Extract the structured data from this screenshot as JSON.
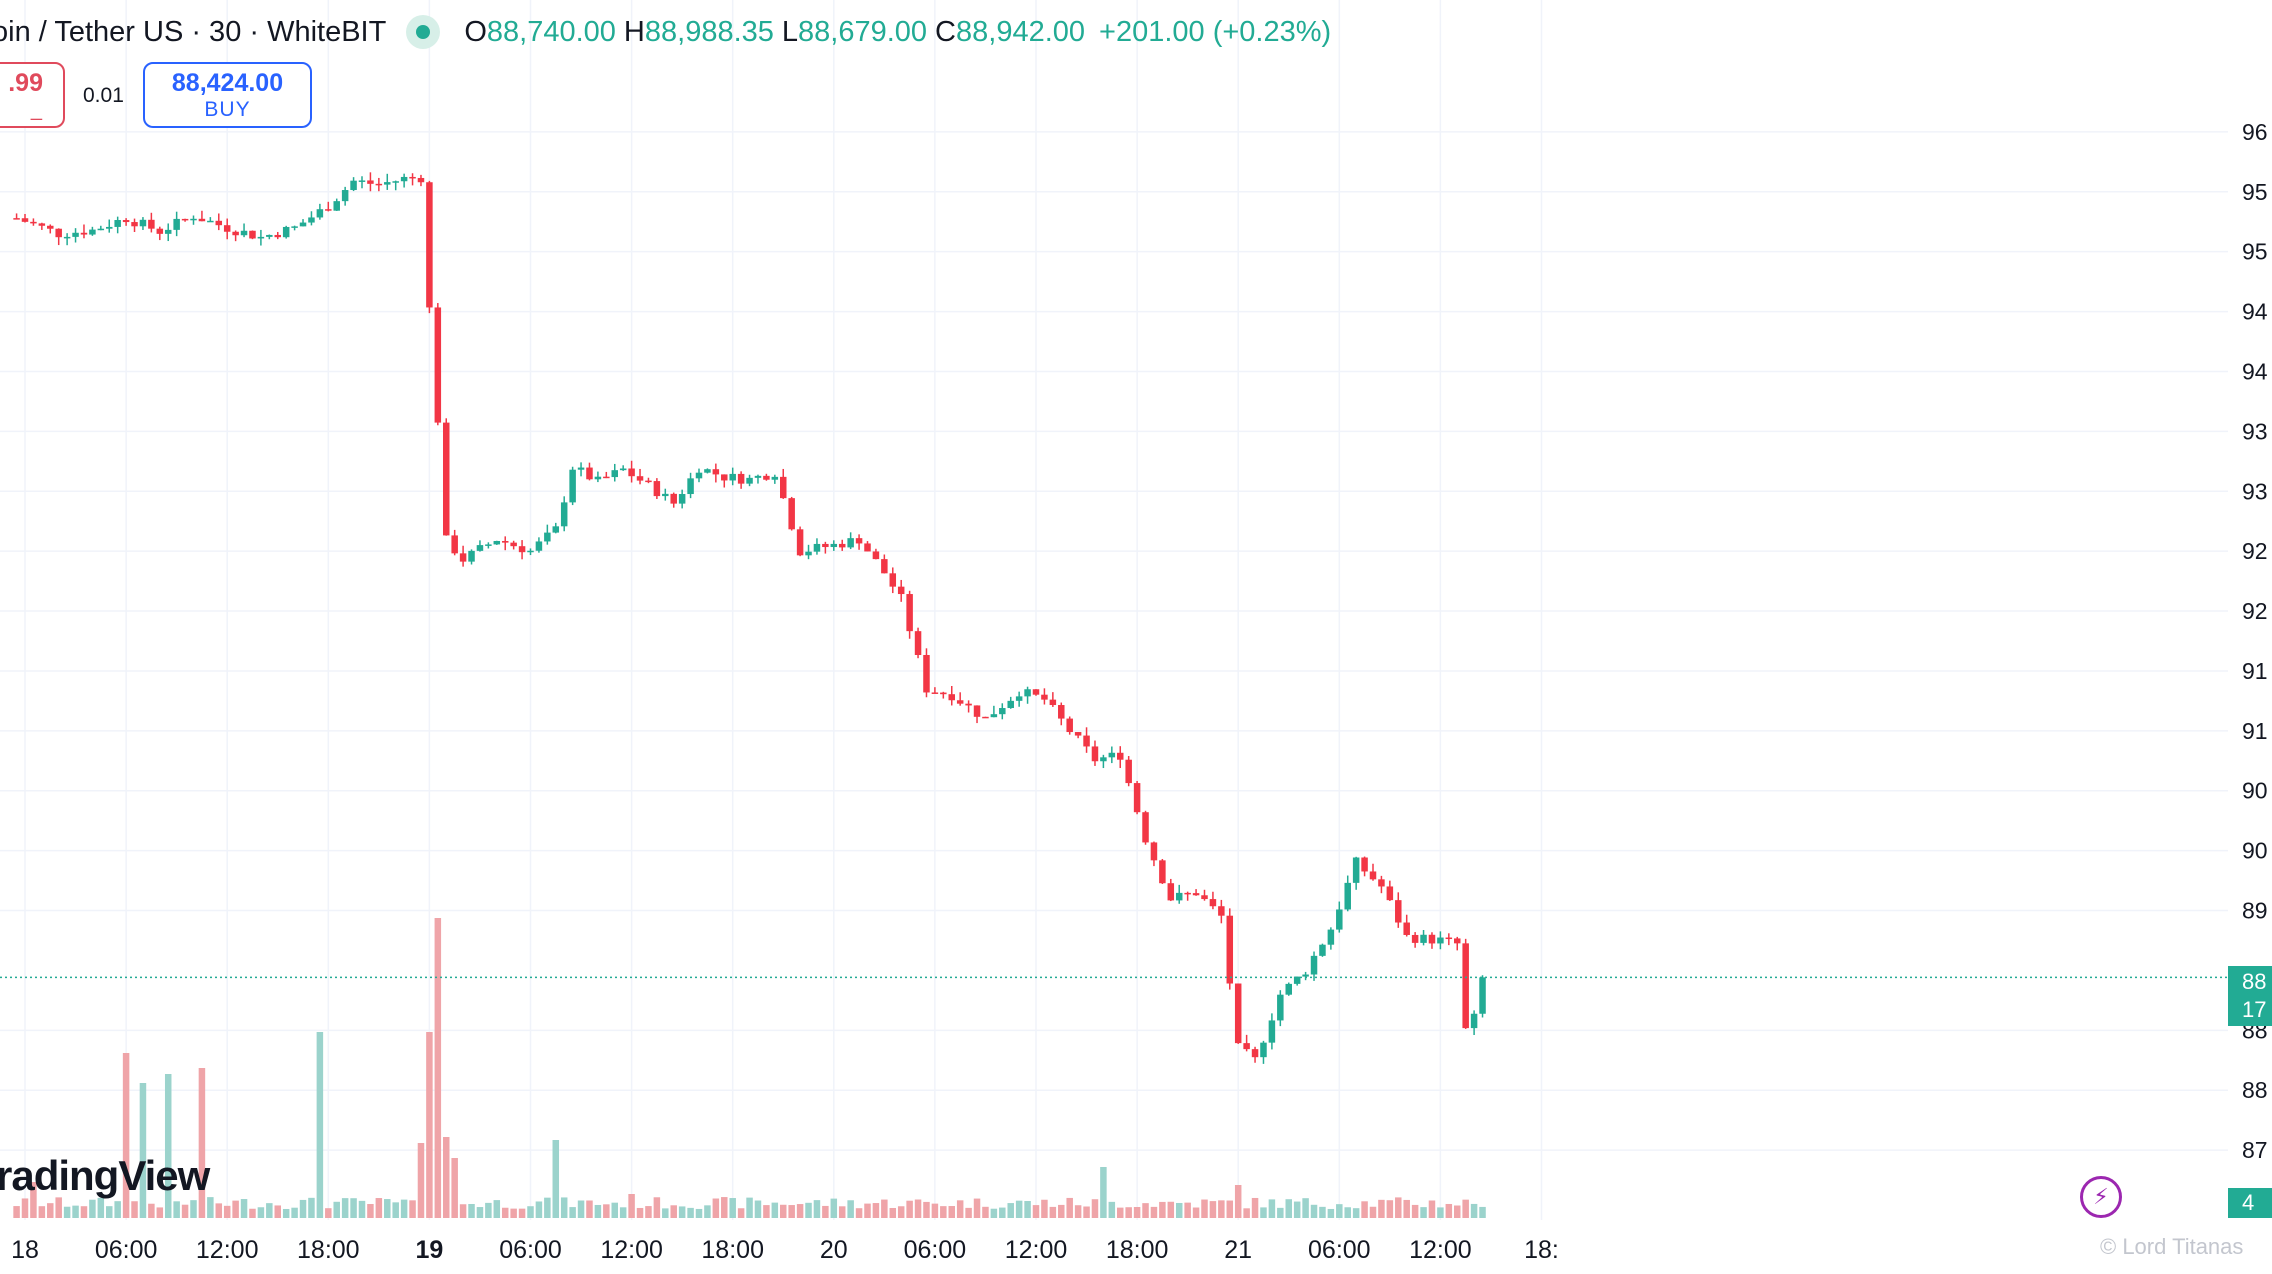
{
  "legend": {
    "symbol": "oin / Tether US · 30 · WhiteBIT",
    "open_key": "O",
    "open": "88,740.00",
    "high_key": "H",
    "high": "88,988.35",
    "low_key": "L",
    "low": "88,679.00",
    "close_key": "C",
    "close": "88,942.00",
    "change": "+201.00 (+0.23%)"
  },
  "trade": {
    "sell_price": ".99",
    "sell_label": "_",
    "spread": "0.01",
    "buy_price": "88,424.00",
    "buy_label": "BUY"
  },
  "watermark": "radingView",
  "footer_credit": "© Lord Titanas",
  "last_price_tag": {
    "line1": "88",
    "line2": "17"
  },
  "volume_tag": "4",
  "colors": {
    "up": "#22ab94",
    "down": "#f23645",
    "up_volume": "#9bd3cc",
    "down_volume": "#efa4a8",
    "grid": "#f0f3fa",
    "axis_text": "#131722"
  },
  "chart_data": {
    "type": "candlestick",
    "symbol": "Bitcoin / Tether US",
    "interval": "30",
    "exchange": "WhiteBIT",
    "y_axis_labels": [
      "96",
      "95",
      "95",
      "94",
      "94",
      "93",
      "93",
      "92",
      "92",
      "91",
      "91",
      "90",
      "90",
      "89",
      "88",
      "88",
      "87"
    ],
    "y_axis_label_values": [
      96000,
      95500,
      95000,
      94500,
      94000,
      93500,
      93000,
      92500,
      92000,
      91500,
      91000,
      90500,
      90000,
      89500,
      88500,
      88000,
      87500
    ],
    "ylim": [
      87000,
      96600
    ],
    "x_axis_labels": [
      {
        "label": "18",
        "hour": 0,
        "bold": false
      },
      {
        "label": "06:00",
        "hour": 6,
        "bold": false
      },
      {
        "label": "12:00",
        "hour": 12,
        "bold": false
      },
      {
        "label": "18:00",
        "hour": 18,
        "bold": false
      },
      {
        "label": "19",
        "hour": 24,
        "bold": true
      },
      {
        "label": "06:00",
        "hour": 30,
        "bold": false
      },
      {
        "label": "12:00",
        "hour": 36,
        "bold": false
      },
      {
        "label": "18:00",
        "hour": 42,
        "bold": false
      },
      {
        "label": "20",
        "hour": 48,
        "bold": false
      },
      {
        "label": "06:00",
        "hour": 54,
        "bold": false
      },
      {
        "label": "12:00",
        "hour": 60,
        "bold": false
      },
      {
        "label": "18:00",
        "hour": 66,
        "bold": false
      },
      {
        "label": "21",
        "hour": 72,
        "bold": false
      },
      {
        "label": "06:00",
        "hour": 78,
        "bold": false
      },
      {
        "label": "12:00",
        "hour": 84,
        "bold": false
      },
      {
        "label": "18:",
        "hour": 90,
        "bold": false
      }
    ],
    "last_price": 88942,
    "grid": true,
    "anchors": [
      {
        "hour": -0.5,
        "price": 95280
      },
      {
        "hour": 2,
        "price": 95150
      },
      {
        "hour": 4,
        "price": 95180
      },
      {
        "hour": 6,
        "price": 95280
      },
      {
        "hour": 8,
        "price": 95170
      },
      {
        "hour": 10,
        "price": 95300
      },
      {
        "hour": 12,
        "price": 95200
      },
      {
        "hour": 14,
        "price": 95120
      },
      {
        "hour": 16,
        "price": 95200
      },
      {
        "hour": 18,
        "price": 95380
      },
      {
        "hour": 19.5,
        "price": 95590
      },
      {
        "hour": 21,
        "price": 95560
      },
      {
        "hour": 22.5,
        "price": 95610
      },
      {
        "hour": 23.5,
        "price": 95620
      },
      {
        "hour": 24,
        "price": 94520
      },
      {
        "hour": 24.5,
        "price": 93600
      },
      {
        "hour": 25,
        "price": 92590
      },
      {
        "hour": 26,
        "price": 92430
      },
      {
        "hour": 28,
        "price": 92600
      },
      {
        "hour": 30,
        "price": 92500
      },
      {
        "hour": 31.5,
        "price": 92680
      },
      {
        "hour": 32.5,
        "price": 93200
      },
      {
        "hour": 34,
        "price": 93080
      },
      {
        "hour": 35.5,
        "price": 93180
      },
      {
        "hour": 37,
        "price": 93050
      },
      {
        "hour": 38.5,
        "price": 92900
      },
      {
        "hour": 40,
        "price": 93200
      },
      {
        "hour": 41.5,
        "price": 93120
      },
      {
        "hour": 43,
        "price": 93100
      },
      {
        "hour": 44.5,
        "price": 93160
      },
      {
        "hour": 46,
        "price": 92500
      },
      {
        "hour": 48,
        "price": 92550
      },
      {
        "hour": 49.5,
        "price": 92600
      },
      {
        "hour": 51,
        "price": 92320
      },
      {
        "hour": 52,
        "price": 92100
      },
      {
        "hour": 53.5,
        "price": 91350
      },
      {
        "hour": 55,
        "price": 91300
      },
      {
        "hour": 57,
        "price": 91100
      },
      {
        "hour": 59,
        "price": 91330
      },
      {
        "hour": 60.5,
        "price": 91260
      },
      {
        "hour": 62,
        "price": 91000
      },
      {
        "hour": 63.5,
        "price": 90760
      },
      {
        "hour": 65,
        "price": 90800
      },
      {
        "hour": 66.5,
        "price": 90100
      },
      {
        "hour": 68,
        "price": 89600
      },
      {
        "hour": 69.5,
        "price": 89650
      },
      {
        "hour": 71,
        "price": 89450
      },
      {
        "hour": 72,
        "price": 88350
      },
      {
        "hour": 73,
        "price": 88250
      },
      {
        "hour": 74.5,
        "price": 88800
      },
      {
        "hour": 76,
        "price": 89000
      },
      {
        "hour": 77.5,
        "price": 89350
      },
      {
        "hour": 79,
        "price": 89900
      },
      {
        "hour": 80.5,
        "price": 89700
      },
      {
        "hour": 82,
        "price": 89280
      },
      {
        "hour": 84,
        "price": 89250
      },
      {
        "hour": 85,
        "price": 89220
      },
      {
        "hour": 85.5,
        "price": 88500
      },
      {
        "hour": 86,
        "price": 88600
      },
      {
        "hour": 86.5,
        "price": 88942
      }
    ],
    "volume_spikes": [
      {
        "hour": 0.5,
        "value": 0.12
      },
      {
        "hour": 6,
        "value": 0.55
      },
      {
        "hour": 7,
        "value": 0.45
      },
      {
        "hour": 8.5,
        "value": 0.48
      },
      {
        "hour": 10.5,
        "value": 0.5
      },
      {
        "hour": 17.5,
        "value": 0.62
      },
      {
        "hour": 23.5,
        "value": 0.25
      },
      {
        "hour": 24,
        "value": 0.62
      },
      {
        "hour": 24.5,
        "value": 1.0
      },
      {
        "hour": 25,
        "value": 0.27
      },
      {
        "hour": 25.5,
        "value": 0.2
      },
      {
        "hour": 31.5,
        "value": 0.26
      },
      {
        "hour": 36,
        "value": 0.08
      },
      {
        "hour": 64,
        "value": 0.17
      },
      {
        "hour": 72,
        "value": 0.11
      }
    ]
  }
}
